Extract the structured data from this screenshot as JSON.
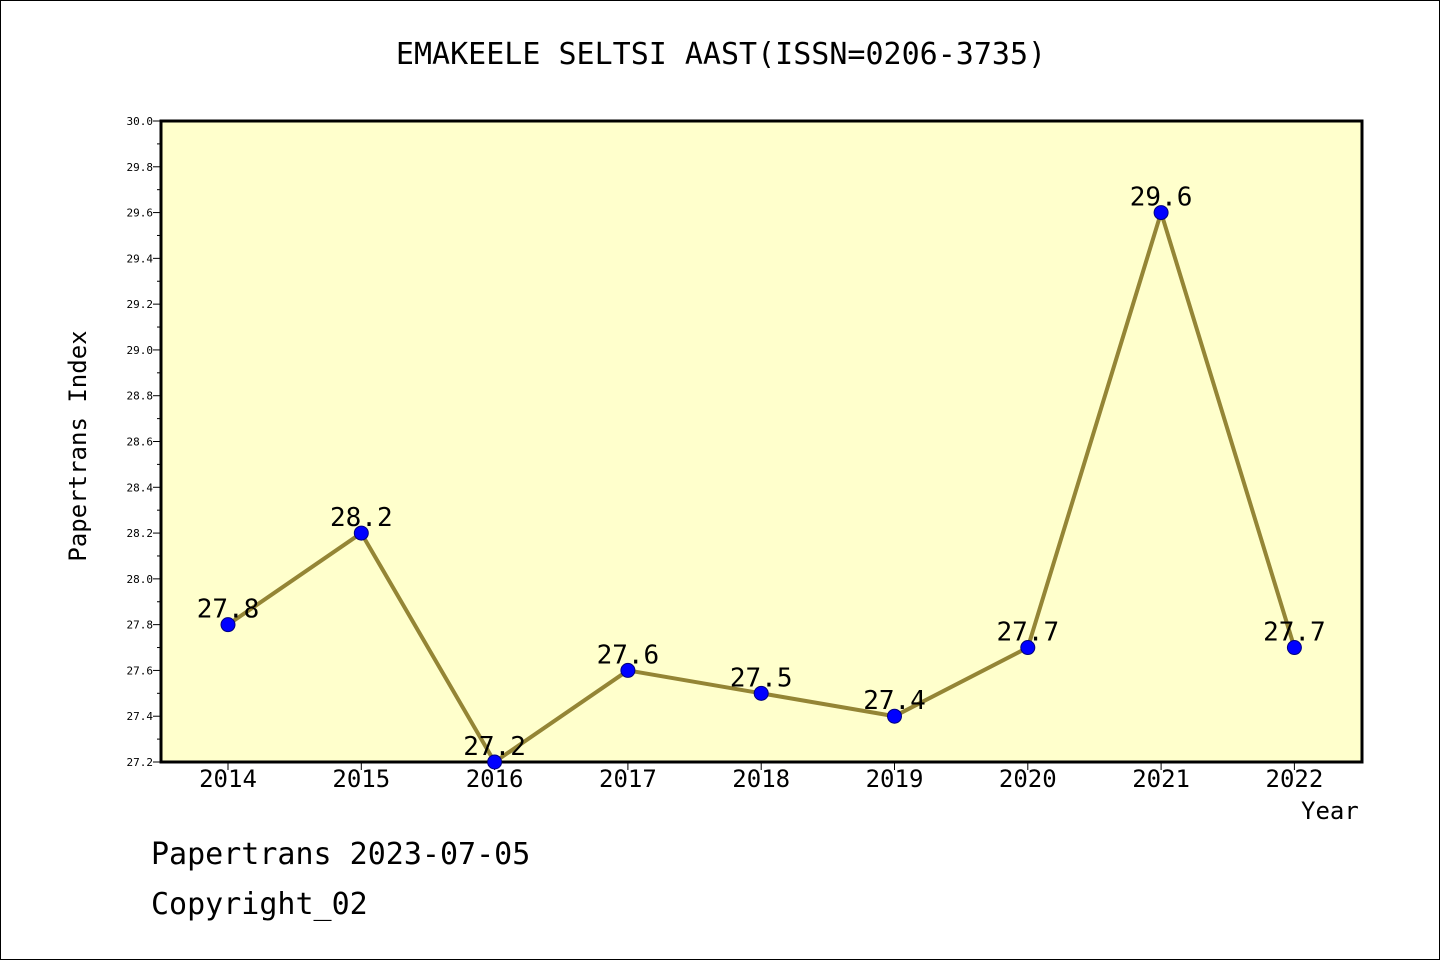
{
  "chart_data": {
    "type": "line",
    "title": "EMAKEELE SELTSI AAST(ISSN=0206-3735)",
    "xlabel": "Year",
    "ylabel": "Papertrans Index",
    "categories": [
      "2014",
      "2015",
      "2016",
      "2017",
      "2018",
      "2019",
      "2020",
      "2021",
      "2022"
    ],
    "series": [
      {
        "values": [
          27.8,
          28.2,
          27.2,
          27.6,
          27.5,
          27.4,
          27.7,
          29.6,
          27.7
        ],
        "labels": [
          "27.8",
          "28.2",
          "27.2",
          "27.6",
          "27.5",
          "27.4",
          "27.7",
          "29.6",
          "27.7"
        ]
      }
    ],
    "ylim": [
      27.2,
      30.0
    ],
    "yticks": [
      "27.2",
      "27.4",
      "27.6",
      "27.8",
      "28.0",
      "28.2",
      "28.4",
      "28.6",
      "28.8",
      "29.0",
      "29.2",
      "29.4",
      "29.6",
      "29.8",
      "30.0"
    ],
    "grid": false,
    "legend": "none",
    "colors": {
      "plot_background": "#ffffcc",
      "line": "#948535",
      "marker_fill": "#0000ff",
      "marker_edge": "#000080"
    }
  },
  "footer": {
    "date_line": "Papertrans 2023-07-05",
    "copyright_line": "Copyright_02"
  }
}
